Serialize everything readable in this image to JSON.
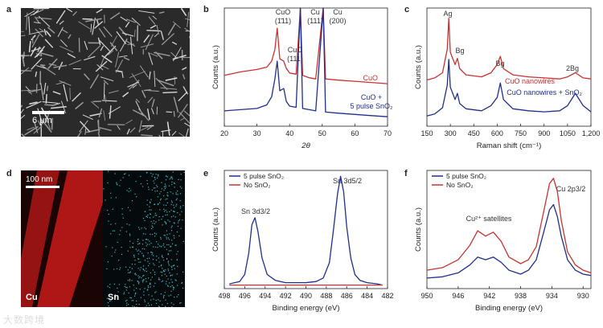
{
  "panel_labels": {
    "a": "a",
    "b": "b",
    "c": "c",
    "d": "d",
    "e": "e",
    "f": "f"
  },
  "panel_a": {
    "scale_bar": "6 μm"
  },
  "panel_d": {
    "scale_bar": "100 nm",
    "left_label": "Cu",
    "right_label": "Sn",
    "left_color": "#c01818",
    "right_color": "#3fb6c0"
  },
  "watermark": "大数跨境",
  "chart_data": [
    {
      "id": "b",
      "type": "line",
      "xlabel": "2θ",
      "ylabel": "Counts (a.u.)",
      "xlim": [
        20,
        70
      ],
      "xticks": [
        20,
        30,
        40,
        50,
        60,
        70
      ],
      "series": [
        {
          "name": "CuO",
          "color": "#c83232",
          "x": [
            20,
            25,
            30,
            33,
            34.5,
            35.5,
            36.2,
            37,
            38.2,
            39,
            40,
            42,
            43.3,
            44,
            46,
            48,
            50.3,
            51,
            55,
            60,
            65,
            70
          ],
          "y": [
            58,
            61,
            63,
            65,
            70,
            80,
            98,
            72,
            70,
            64,
            60,
            59,
            160,
            58,
            56,
            55,
            160,
            55,
            54,
            53,
            52,
            51
          ]
        },
        {
          "name": "CuO + 5 pulse SnO2",
          "color": "#1f2f8c",
          "x": [
            20,
            25,
            30,
            33,
            34.5,
            35.5,
            36.2,
            37,
            38.2,
            39,
            40,
            42,
            43.3,
            44,
            46,
            48,
            50.3,
            51,
            55,
            60,
            65,
            70
          ],
          "y": [
            28,
            29,
            30,
            33,
            40,
            55,
            70,
            45,
            47,
            36,
            32,
            31,
            160,
            30,
            29,
            28,
            160,
            27,
            26,
            25,
            24,
            23
          ]
        }
      ],
      "annotations": [
        "CuO",
        "(1̄11)",
        "CuO",
        "(111)",
        "Cu",
        "(111)",
        "Cu",
        "(200)"
      ],
      "series_labels": {
        "cuo": "CuO",
        "mix1": "CuO +",
        "mix2": "5 pulse SnO₂"
      }
    },
    {
      "id": "c",
      "type": "line",
      "xlabel": "Raman shift (cm⁻¹)",
      "ylabel": "Counts (a.u.)",
      "xlim": [
        150,
        1200
      ],
      "xticks": [
        150,
        300,
        450,
        600,
        750,
        900,
        1050,
        "1,200"
      ],
      "series": [
        {
          "name": "CuO nanowires",
          "color": "#c83232",
          "x": [
            150,
            200,
            250,
            280,
            290,
            300,
            330,
            345,
            360,
            400,
            500,
            560,
            600,
            620,
            640,
            700,
            800,
            900,
            1000,
            1050,
            1100,
            1150,
            1200
          ],
          "y": [
            65,
            67,
            72,
            95,
            125,
            92,
            80,
            86,
            76,
            70,
            68,
            72,
            80,
            88,
            76,
            70,
            68,
            67,
            66,
            68,
            72,
            67,
            66
          ]
        },
        {
          "name": "CuO nanowires + SnO2",
          "color": "#1f2f8c",
          "x": [
            150,
            200,
            250,
            280,
            290,
            300,
            330,
            345,
            360,
            400,
            500,
            560,
            600,
            620,
            640,
            700,
            800,
            900,
            1000,
            1050,
            1100,
            1150,
            1200
          ],
          "y": [
            30,
            32,
            38,
            60,
            85,
            58,
            46,
            52,
            42,
            37,
            35,
            40,
            48,
            62,
            46,
            37,
            35,
            34,
            35,
            40,
            52,
            40,
            34
          ]
        }
      ],
      "annotations": [
        "Ag",
        "Bg",
        "Bg",
        "2Bg"
      ],
      "series_labels": {
        "cuo": "CuO nanowires",
        "mix": "CuO nanowires + SnO₂"
      }
    },
    {
      "id": "e",
      "type": "line",
      "xlabel": "Binding energy (eV)",
      "ylabel": "Counts (a.u.)",
      "xlim": [
        498,
        482
      ],
      "xticks": [
        498,
        496,
        494,
        492,
        490,
        488,
        486,
        484,
        482
      ],
      "legend": [
        "5 pulse SnO₂",
        "No SnO₂"
      ],
      "series": [
        {
          "name": "5 pulse SnO2",
          "color": "#1f2f8c",
          "x": [
            497.5,
            496.5,
            496,
            495.6,
            495.3,
            495,
            494.7,
            494.3,
            493.8,
            493,
            492,
            490,
            489,
            488.3,
            487.7,
            487.3,
            486.9,
            486.6,
            486.3,
            486,
            485.6,
            485.2,
            484.7,
            484,
            483,
            482.5
          ],
          "y": [
            4,
            6,
            12,
            30,
            54,
            60,
            48,
            26,
            12,
            7,
            5,
            5,
            6,
            9,
            22,
            50,
            80,
            95,
            82,
            52,
            26,
            12,
            7,
            5,
            4,
            3
          ]
        },
        {
          "name": "No SnO2",
          "color": "#c83232",
          "x": [
            497.5,
            482.5
          ],
          "y": [
            3,
            3
          ]
        }
      ],
      "annotations": [
        "Sn 3d3/2",
        "Sn 3d5/2"
      ]
    },
    {
      "id": "f",
      "type": "line",
      "xlabel": "Binding energy (eV)",
      "ylabel": "Counts (a.u.)",
      "xlim": [
        950,
        929
      ],
      "xticks": [
        950,
        946,
        942,
        938,
        934,
        930
      ],
      "legend": [
        "5 pulse SnO₂",
        "No SnO₂"
      ],
      "series": [
        {
          "name": "5 pulse SnO2",
          "color": "#1f2f8c",
          "x": [
            950,
            948,
            946,
            944.5,
            943.5,
            942.5,
            941.5,
            940.5,
            939.5,
            938,
            937,
            936,
            935,
            934.3,
            933.8,
            933.3,
            932.8,
            932,
            931,
            930,
            929
          ],
          "y": [
            8,
            9,
            12,
            18,
            24,
            22,
            24,
            20,
            14,
            11,
            14,
            22,
            44,
            60,
            64,
            55,
            40,
            22,
            14,
            11,
            10
          ]
        },
        {
          "name": "No SnO2",
          "color": "#c83232",
          "x": [
            950,
            948,
            946,
            944.5,
            943.5,
            942.5,
            941.5,
            940.5,
            939.5,
            938,
            937,
            936,
            935,
            934.3,
            933.8,
            933.3,
            932.8,
            932,
            931,
            930,
            929
          ],
          "y": [
            14,
            16,
            22,
            33,
            44,
            40,
            43,
            36,
            24,
            19,
            22,
            32,
            60,
            80,
            84,
            74,
            52,
            28,
            18,
            14,
            12
          ]
        }
      ],
      "annotations": [
        "Cu 2p3/2",
        "Cu²⁺ satellites"
      ]
    }
  ]
}
